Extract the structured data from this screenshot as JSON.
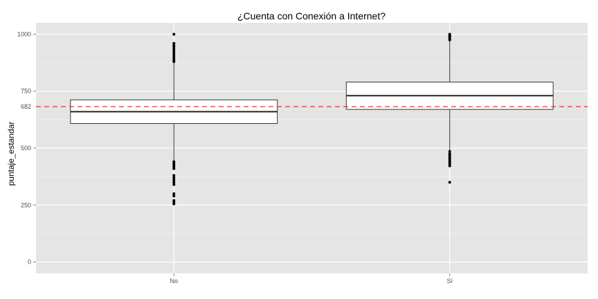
{
  "chart_data": {
    "type": "boxplot",
    "title": "¿Cuenta con Conexión a Internet?",
    "xlabel": "",
    "ylabel": "puntaje_estandar",
    "categories": [
      "No",
      "Sí"
    ],
    "ylim": [
      -50,
      1050
    ],
    "yticks": [
      0,
      250,
      500,
      750,
      1000
    ],
    "reference_line": {
      "value": 682,
      "label": "682",
      "color": "#e41a1c",
      "style": "dashed"
    },
    "boxes": [
      {
        "category": "No",
        "whisker_low": 440,
        "q1": 608,
        "median": 660,
        "q3": 712,
        "whisker_high": 875,
        "outliers": [
          1000,
          960,
          950,
          945,
          935,
          925,
          915,
          905,
          895,
          885,
          880,
          440,
          432,
          425,
          418,
          410,
          380,
          370,
          360,
          350,
          340,
          300,
          290,
          270,
          262,
          255
        ]
      },
      {
        "category": "Sí",
        "whisker_low": 480,
        "q1": 670,
        "median": 730,
        "q3": 790,
        "whisker_high": 980,
        "outliers": [
          1000,
          995,
          990,
          985,
          980,
          975,
          485,
          475,
          468,
          460,
          452,
          445,
          438,
          430,
          422,
          350
        ]
      }
    ],
    "grid": true,
    "background": "#e5e5e5",
    "gridline_color": "#ffffff",
    "box_fill": "#ffffff",
    "box_stroke": "#333333",
    "point_color": "#000000",
    "legend": "none"
  }
}
